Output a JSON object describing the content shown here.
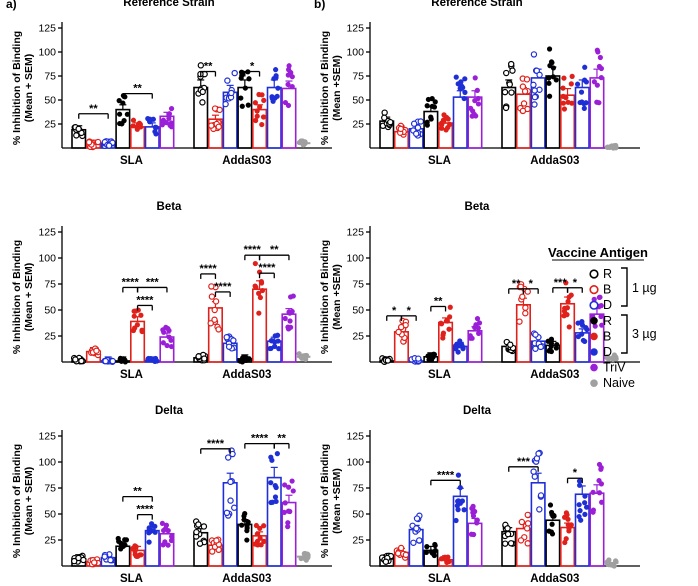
{
  "panel_labels": [
    "a)",
    "b)"
  ],
  "y_axis_label_top": "% Inhibition of Binding",
  "y_axis_label_bottom": "(Mean + SEM)",
  "y_axis_label_bottom_alt": "(Mean +SEM)",
  "groups": [
    "SLA",
    "AddaS03"
  ],
  "series": [
    {
      "key": "R1",
      "label": "R",
      "color": "#000000",
      "fill": "open",
      "dose": "1 µg"
    },
    {
      "key": "B1",
      "label": "B",
      "color": "#e0201b",
      "fill": "open",
      "dose": "1 µg"
    },
    {
      "key": "D1",
      "label": "D",
      "color": "#1f2fd6",
      "fill": "open",
      "dose": "1 µg"
    },
    {
      "key": "R3",
      "label": "R",
      "color": "#000000",
      "fill": "solid",
      "dose": "3 µg"
    },
    {
      "key": "B3",
      "label": "B",
      "color": "#e0201b",
      "fill": "solid",
      "dose": "3 µg"
    },
    {
      "key": "D3",
      "label": "D",
      "color": "#1f2fd6",
      "fill": "solid",
      "dose": "3 µg"
    },
    {
      "key": "TriV",
      "label": "TriV",
      "color": "#9a1fd6",
      "fill": "solid",
      "dose": ""
    },
    {
      "key": "Naive",
      "label": "Naive",
      "color": "#a0a0a0",
      "fill": "solid",
      "dose": ""
    }
  ],
  "legend": {
    "title": "Vaccine Antigen",
    "dose_1": "1 µg",
    "dose_3": "3 µg",
    "items": [
      "R",
      "B",
      "D",
      "R",
      "B",
      "D",
      "TriV",
      "Naive"
    ]
  },
  "chart_data": [
    {
      "id": "a-ref",
      "panel": "a)",
      "type": "bar",
      "title": "Reference Strain",
      "ylabel": "% Inhibition of Binding (Mean + SEM)",
      "ylim": [
        0,
        125
      ],
      "yticks": [
        25,
        50,
        75,
        100,
        125
      ],
      "categories": [
        "SLA",
        "AddaS03"
      ],
      "series": [
        {
          "name": "R 1 µg",
          "values": [
            19,
            63
          ]
        },
        {
          "name": "B 1 µg",
          "values": [
            4,
            30
          ]
        },
        {
          "name": "D 1 µg",
          "values": [
            5,
            58
          ]
        },
        {
          "name": "R 3 µg",
          "values": [
            40,
            63
          ]
        },
        {
          "name": "B 3 µg",
          "values": [
            22,
            40
          ]
        },
        {
          "name": "D 3 µg",
          "values": [
            22,
            63
          ]
        },
        {
          "name": "TriV",
          "values": [
            33,
            62
          ]
        },
        {
          "name": "Naive",
          "values": [
            null,
            5
          ]
        }
      ],
      "sig": [
        {
          "group": 0,
          "from": 0,
          "to": 2,
          "level": 0,
          "label": "**"
        },
        {
          "group": 0,
          "from": 3,
          "to": 5,
          "level": 0,
          "label": "**"
        },
        {
          "group": 1,
          "from": 0,
          "to": 1,
          "level": 0,
          "label": "**"
        },
        {
          "group": 1,
          "from": 3,
          "to": 4,
          "level": 0,
          "label": "*"
        }
      ]
    },
    {
      "id": "b-ref",
      "panel": "b)",
      "type": "bar",
      "title": "Reference Strain",
      "ylabel": "% Inhibition of Binding (Mean + SEM)",
      "ylim": [
        0,
        125
      ],
      "yticks": [
        25,
        50,
        75,
        100,
        125
      ],
      "categories": [
        "SLA",
        "AddaS03"
      ],
      "series": [
        {
          "name": "R 1 µg",
          "values": [
            28,
            63
          ]
        },
        {
          "name": "B 1 µg",
          "values": [
            17,
            56
          ]
        },
        {
          "name": "D 1 µg",
          "values": [
            20,
            73
          ]
        },
        {
          "name": "R 3 µg",
          "values": [
            38,
            75
          ]
        },
        {
          "name": "B 3 µg",
          "values": [
            26,
            55
          ]
        },
        {
          "name": "D 3 µg",
          "values": [
            53,
            63
          ]
        },
        {
          "name": "TriV",
          "values": [
            53,
            73
          ]
        },
        {
          "name": "Naive",
          "values": [
            null,
            1
          ]
        }
      ],
      "sig": []
    },
    {
      "id": "a-beta",
      "panel": "a)",
      "type": "bar",
      "title": "Beta",
      "ylabel": "% Inhibition of Binding (Mean + SEM)",
      "ylim": [
        0,
        125
      ],
      "yticks": [
        25,
        50,
        75,
        100,
        125
      ],
      "categories": [
        "SLA",
        "AddaS03"
      ],
      "series": [
        {
          "name": "R 1 µg",
          "values": [
            1,
            4
          ]
        },
        {
          "name": "B 1 µg",
          "values": [
            10,
            52
          ]
        },
        {
          "name": "D 1 µg",
          "values": [
            1,
            18
          ]
        },
        {
          "name": "R 3 µg",
          "values": [
            1,
            3
          ]
        },
        {
          "name": "B 3 µg",
          "values": [
            39,
            70
          ]
        },
        {
          "name": "D 3 µg",
          "values": [
            1,
            20
          ]
        },
        {
          "name": "TriV",
          "values": [
            24,
            46
          ]
        },
        {
          "name": "Naive",
          "values": [
            null,
            5
          ]
        }
      ],
      "sig": [
        {
          "group": 0,
          "from": 3,
          "to": 4,
          "level": 1,
          "label": "****"
        },
        {
          "group": 0,
          "from": 4,
          "to": 6,
          "level": 1,
          "label": "***"
        },
        {
          "group": 0,
          "from": 4,
          "to": 5,
          "level": 0,
          "label": "****"
        },
        {
          "group": 1,
          "from": 0,
          "to": 1,
          "level": 1,
          "label": "****"
        },
        {
          "group": 1,
          "from": 1,
          "to": 2,
          "level": 0,
          "label": "****"
        },
        {
          "group": 1,
          "from": 3,
          "to": 4,
          "level": 1,
          "label": "****"
        },
        {
          "group": 1,
          "from": 4,
          "to": 6,
          "level": 1,
          "label": "**"
        },
        {
          "group": 1,
          "from": 4,
          "to": 5,
          "level": 0,
          "label": "****"
        }
      ]
    },
    {
      "id": "b-beta",
      "panel": "b)",
      "type": "bar",
      "title": "Beta",
      "ylabel": "% Inhibition of Binding (Mean +SEM)",
      "ylim": [
        0,
        125
      ],
      "yticks": [
        25,
        50,
        75,
        100,
        125
      ],
      "categories": [
        "SLA",
        "AddaS03"
      ],
      "series": [
        {
          "name": "R 1 µg",
          "values": [
            1,
            15
          ]
        },
        {
          "name": "B 1 µg",
          "values": [
            29,
            55
          ]
        },
        {
          "name": "D 1 µg",
          "values": [
            1,
            20
          ]
        },
        {
          "name": "R 3 µg",
          "values": [
            5,
            16
          ]
        },
        {
          "name": "B 3 µg",
          "values": [
            38,
            56
          ]
        },
        {
          "name": "D 3 µg",
          "values": [
            15,
            28
          ]
        },
        {
          "name": "TriV",
          "values": [
            30,
            46
          ]
        },
        {
          "name": "Naive",
          "values": [
            null,
            4
          ]
        }
      ],
      "sig": [
        {
          "group": 0,
          "from": 0,
          "to": 1,
          "level": 0,
          "label": "*"
        },
        {
          "group": 0,
          "from": 1,
          "to": 2,
          "level": 0,
          "label": "*"
        },
        {
          "group": 0,
          "from": 3,
          "to": 4,
          "level": 0,
          "label": "**"
        },
        {
          "group": 1,
          "from": 0,
          "to": 1,
          "level": 0,
          "label": "**"
        },
        {
          "group": 1,
          "from": 1,
          "to": 2,
          "level": 0,
          "label": "*"
        },
        {
          "group": 1,
          "from": 3,
          "to": 4,
          "level": 0,
          "label": "***"
        },
        {
          "group": 1,
          "from": 4,
          "to": 5,
          "level": 0,
          "label": "*"
        }
      ]
    },
    {
      "id": "a-delta",
      "panel": "a)",
      "type": "bar",
      "title": "Delta",
      "ylabel": "% Inhibition of Binding (Mean + SEM)",
      "ylim": [
        0,
        125
      ],
      "yticks": [
        25,
        50,
        75,
        100,
        125
      ],
      "categories": [
        "SLA",
        "AddaS03"
      ],
      "series": [
        {
          "name": "R 1 µg",
          "values": [
            7,
            32
          ]
        },
        {
          "name": "B 1 µg",
          "values": [
            4,
            20
          ]
        },
        {
          "name": "D 1 µg",
          "values": [
            8,
            80
          ]
        },
        {
          "name": "R 3 µg",
          "values": [
            19,
            40
          ]
        },
        {
          "name": "B 3 µg",
          "values": [
            15,
            29
          ]
        },
        {
          "name": "D 3 µg",
          "values": [
            34,
            85
          ]
        },
        {
          "name": "TriV",
          "values": [
            31,
            61
          ]
        },
        {
          "name": "Naive",
          "values": [
            null,
            9
          ]
        }
      ],
      "sig": [
        {
          "group": 0,
          "from": 3,
          "to": 5,
          "level": 1,
          "label": "**"
        },
        {
          "group": 0,
          "from": 4,
          "to": 5,
          "level": 0,
          "label": "****"
        },
        {
          "group": 1,
          "from": 0,
          "to": 2,
          "level": 1,
          "label": "****"
        },
        {
          "group": 1,
          "from": 3,
          "to": 5,
          "level": 1,
          "label": "****"
        },
        {
          "group": 1,
          "from": 5,
          "to": 6,
          "level": 1,
          "label": "**"
        }
      ]
    },
    {
      "id": "b-delta",
      "panel": "b)",
      "type": "bar",
      "title": "Delta",
      "ylabel": "% Inhibition of Binding (Mean +SEM)",
      "ylim": [
        0,
        125
      ],
      "yticks": [
        25,
        50,
        75,
        100,
        125
      ],
      "categories": [
        "SLA",
        "AddaS03"
      ],
      "series": [
        {
          "name": "R 1 µg",
          "values": [
            7,
            33
          ]
        },
        {
          "name": "B 1 µg",
          "values": [
            13,
            36
          ]
        },
        {
          "name": "D 1 µg",
          "values": [
            35,
            80
          ]
        },
        {
          "name": "R 3 µg",
          "values": [
            15,
            44
          ]
        },
        {
          "name": "B 3 µg",
          "values": [
            6,
            37
          ]
        },
        {
          "name": "D 3 µg",
          "values": [
            67,
            69
          ]
        },
        {
          "name": "TriV",
          "values": [
            41,
            70
          ]
        },
        {
          "name": "Naive",
          "values": [
            null,
            3
          ]
        }
      ],
      "sig": [
        {
          "group": 0,
          "from": 3,
          "to": 5,
          "level": 0,
          "label": "****"
        },
        {
          "group": 1,
          "from": 0,
          "to": 2,
          "level": 0,
          "label": "***"
        },
        {
          "group": 1,
          "from": 4,
          "to": 5,
          "level": 0,
          "label": "*"
        }
      ]
    }
  ]
}
